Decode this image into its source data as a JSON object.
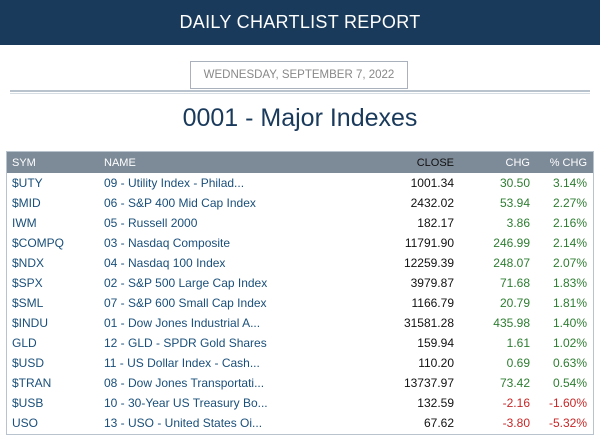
{
  "header": {
    "title": "DAILY CHARTLIST REPORT"
  },
  "report": {
    "date": "WEDNESDAY, SEPTEMBER 7, 2022",
    "list_title": "0001 - Major Indexes"
  },
  "colors": {
    "banner": "#1a3a5c",
    "positive": "#2e7d32",
    "negative": "#c62828",
    "header_row": "#7d8a98"
  },
  "table": {
    "columns": {
      "sym": "SYM",
      "name": "NAME",
      "close": "CLOSE",
      "chg": "CHG",
      "pct": "% CHG"
    },
    "rows": [
      {
        "sym": "$UTY",
        "name": "09 - Utility Index - Philad...",
        "close": "1001.34",
        "chg": "30.50",
        "pct": "3.14%",
        "dir": "pos"
      },
      {
        "sym": "$MID",
        "name": "06 - S&P 400 Mid Cap Index",
        "close": "2432.02",
        "chg": "53.94",
        "pct": "2.27%",
        "dir": "pos"
      },
      {
        "sym": "IWM",
        "name": "05 - Russell 2000",
        "close": "182.17",
        "chg": "3.86",
        "pct": "2.16%",
        "dir": "pos"
      },
      {
        "sym": "$COMPQ",
        "name": "03 - Nasdaq Composite",
        "close": "11791.90",
        "chg": "246.99",
        "pct": "2.14%",
        "dir": "pos"
      },
      {
        "sym": "$NDX",
        "name": "04 - Nasdaq 100 Index",
        "close": "12259.39",
        "chg": "248.07",
        "pct": "2.07%",
        "dir": "pos"
      },
      {
        "sym": "$SPX",
        "name": "02 - S&P 500 Large Cap Index",
        "close": "3979.87",
        "chg": "71.68",
        "pct": "1.83%",
        "dir": "pos"
      },
      {
        "sym": "$SML",
        "name": "07 - S&P 600 Small Cap Index",
        "close": "1166.79",
        "chg": "20.79",
        "pct": "1.81%",
        "dir": "pos"
      },
      {
        "sym": "$INDU",
        "name": "01 - Dow Jones Industrial A...",
        "close": "31581.28",
        "chg": "435.98",
        "pct": "1.40%",
        "dir": "pos"
      },
      {
        "sym": "GLD",
        "name": "12 - GLD - SPDR Gold Shares",
        "close": "159.94",
        "chg": "1.61",
        "pct": "1.02%",
        "dir": "pos"
      },
      {
        "sym": "$USD",
        "name": "11 - US Dollar Index - Cash...",
        "close": "110.20",
        "chg": "0.69",
        "pct": "0.63%",
        "dir": "pos"
      },
      {
        "sym": "$TRAN",
        "name": "08 - Dow Jones Transportati...",
        "close": "13737.97",
        "chg": "73.42",
        "pct": "0.54%",
        "dir": "pos"
      },
      {
        "sym": "$USB",
        "name": "10 - 30-Year US Treasury Bo...",
        "close": "132.59",
        "chg": "-2.16",
        "pct": "-1.60%",
        "dir": "neg"
      },
      {
        "sym": "USO",
        "name": "13 - USO - United States Oi...",
        "close": "67.62",
        "chg": "-3.80",
        "pct": "-5.32%",
        "dir": "neg"
      }
    ]
  }
}
